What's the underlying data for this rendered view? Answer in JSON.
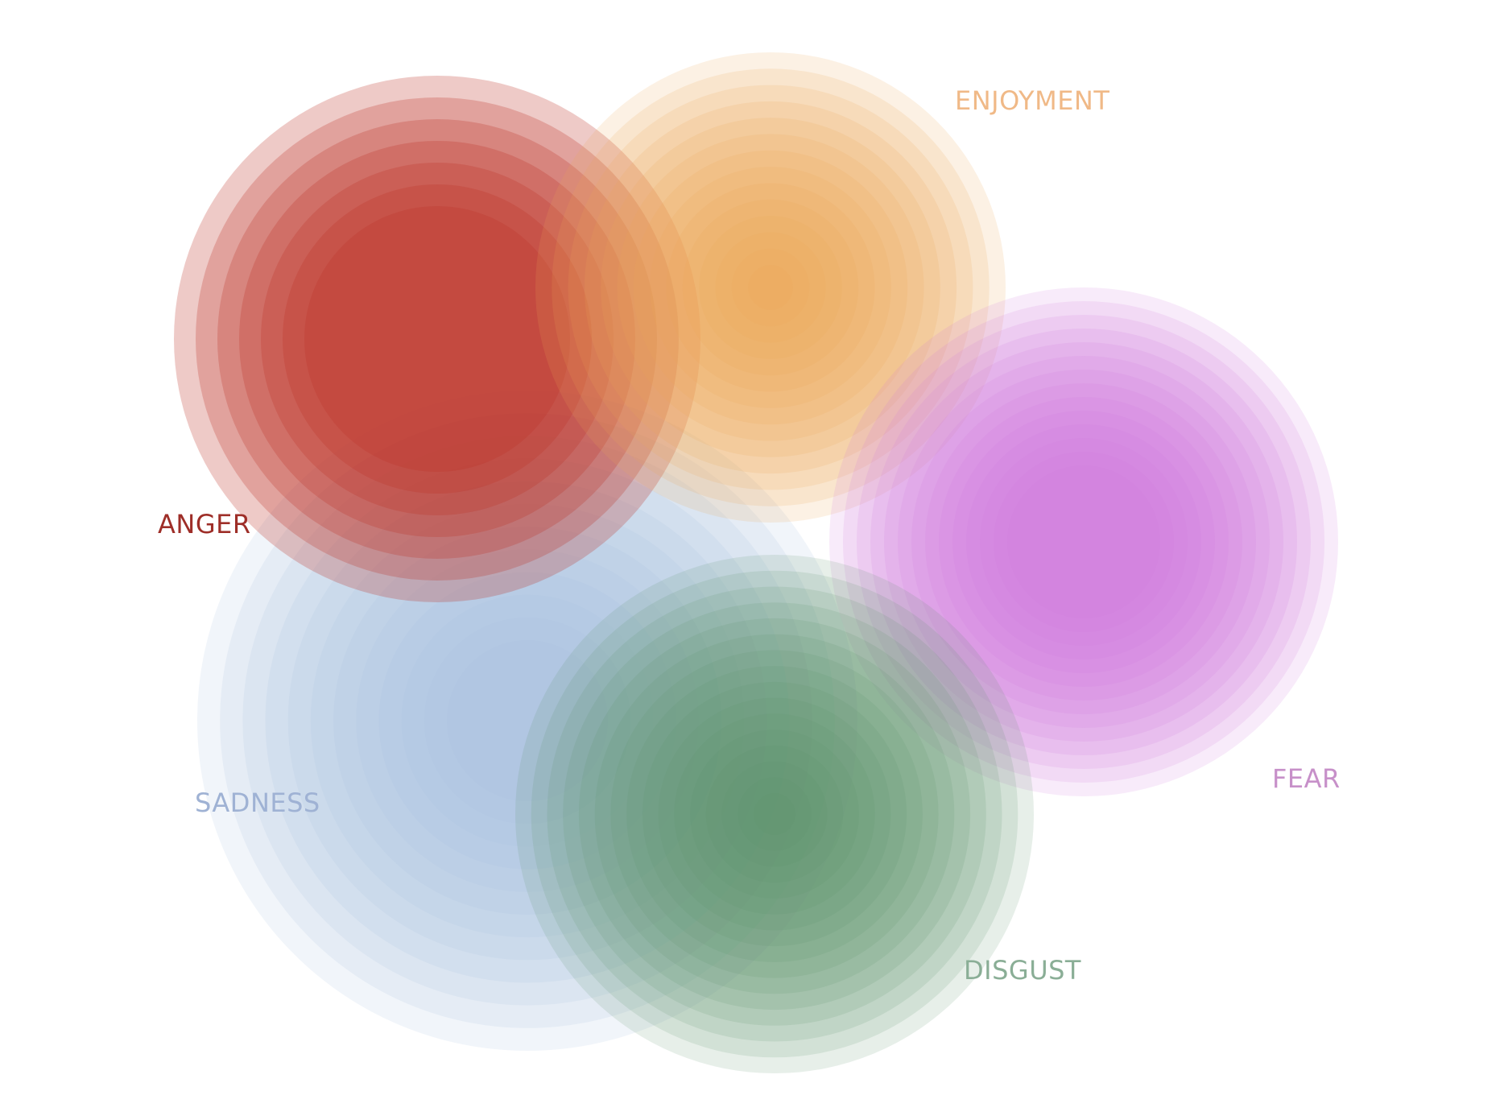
{
  "emotions": [
    {
      "id": "anger",
      "label": "ANGER",
      "color": "#bc3228",
      "label_color": "#9e2e28",
      "rings": 7
    },
    {
      "id": "enjoyment",
      "label": "ENJOYMENT",
      "color": "#eba65a",
      "label_color": "#f0b987",
      "rings": 14
    },
    {
      "id": "fear",
      "label": "FEAR",
      "color": "#d27adb",
      "label_color": "#c790c9",
      "rings": 14
    },
    {
      "id": "sadness",
      "label": "SADNESS",
      "color": "#a6c0e3",
      "label_color": "#9fb2d4",
      "rings": 12
    },
    {
      "id": "disgust",
      "label": "DISGUST",
      "color": "#5c936a",
      "label_color": "#8aae96",
      "rings": 16
    }
  ]
}
